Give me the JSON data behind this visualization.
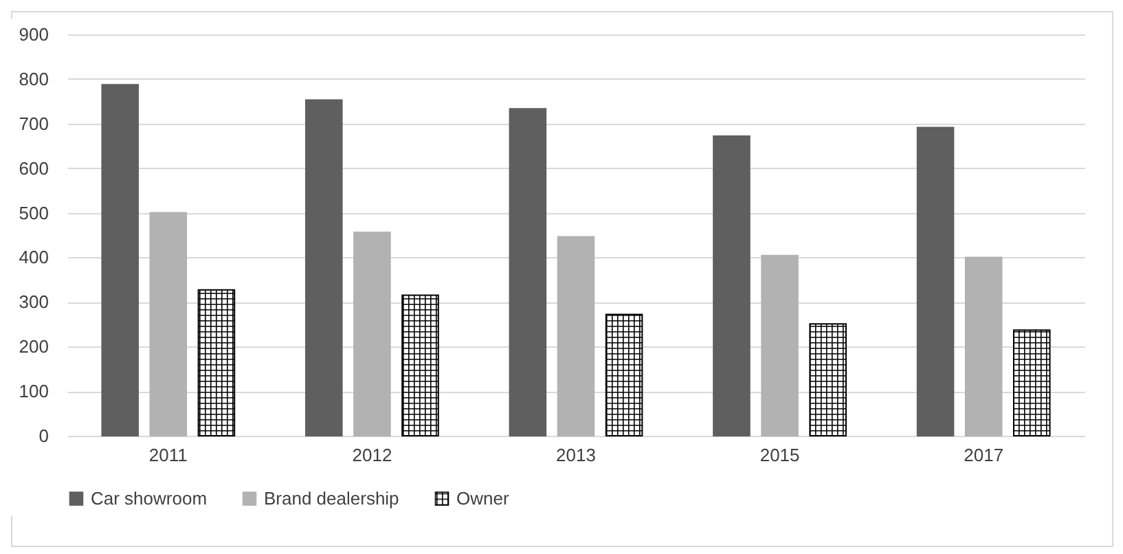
{
  "chart_data": {
    "type": "bar",
    "categories": [
      "2011",
      "2012",
      "2013",
      "2015",
      "2017"
    ],
    "series": [
      {
        "name": "Car showroom",
        "color": "#5f5f5f",
        "values": [
          787,
          753,
          733,
          672,
          691
        ]
      },
      {
        "name": "Brand dealership",
        "color": "#b2b2b2",
        "values": [
          500,
          456,
          446,
          404,
          400
        ]
      },
      {
        "name": "Owner",
        "color": "#000000",
        "values": [
          327,
          315,
          272,
          251,
          237
        ]
      }
    ],
    "ylim": [
      0,
      900
    ],
    "yticks": [
      0,
      100,
      200,
      300,
      400,
      500,
      600,
      700,
      800,
      900
    ],
    "grid": "y",
    "legend": "bottom"
  }
}
